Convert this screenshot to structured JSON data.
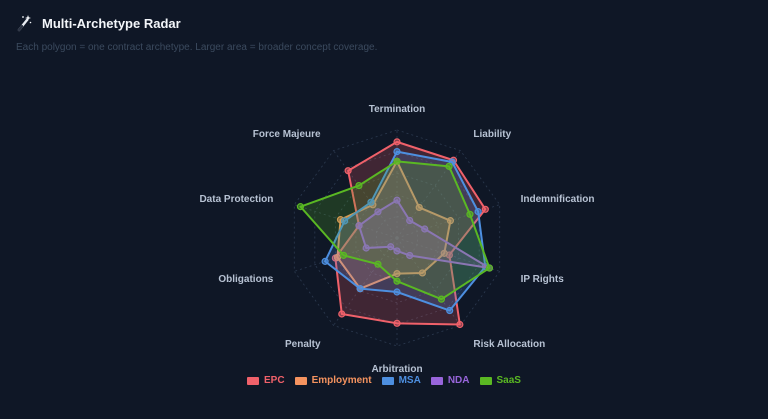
{
  "header": {
    "title": "Multi-Archetype Radar",
    "subtitle": "Each polygon = one contract archetype. Larger area = broader concept coverage.",
    "icon": "magic-wand-icon"
  },
  "chart_data": {
    "type": "radar",
    "axes": [
      "Termination",
      "Liability",
      "Indemnification",
      "IP Rights",
      "Risk Allocation",
      "Arbitration",
      "Penalty",
      "Obligations",
      "Data Protection",
      "Force Majeure"
    ],
    "range": [
      0,
      1
    ],
    "grid": true,
    "legend_position": "bottom",
    "series": [
      {
        "name": "EPC",
        "color": "#f0616a",
        "values": [
          0.89,
          0.89,
          0.86,
          0.51,
          0.99,
          0.79,
          0.87,
          0.6,
          0.37,
          0.77
        ]
      },
      {
        "name": "Employment",
        "color": "#f5935f",
        "values": [
          0.71,
          0.35,
          0.52,
          0.46,
          0.4,
          0.33,
          0.58,
          0.58,
          0.55,
          0.38
        ]
      },
      {
        "name": "MSA",
        "color": "#4d8fe0",
        "values": [
          0.8,
          0.87,
          0.79,
          0.86,
          0.83,
          0.5,
          0.58,
          0.7,
          0.51,
          0.41
        ]
      },
      {
        "name": "NDA",
        "color": "#9865db",
        "values": [
          0.35,
          0.2,
          0.27,
          0.9,
          0.2,
          0.12,
          0.1,
          0.3,
          0.37,
          0.3
        ]
      },
      {
        "name": "SaaS",
        "color": "#5ab823",
        "values": [
          0.71,
          0.82,
          0.71,
          0.9,
          0.7,
          0.4,
          0.3,
          0.52,
          0.94,
          0.6
        ]
      }
    ]
  }
}
